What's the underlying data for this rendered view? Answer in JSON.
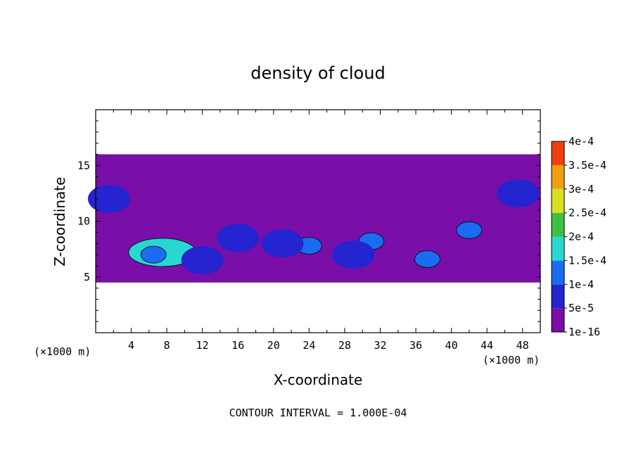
{
  "chart_data": {
    "type": "heatmap",
    "title": "density of cloud",
    "xlabel": "X-coordinate",
    "ylabel": "Z-coordinate",
    "x_unit": "(×1000 m)",
    "y_unit": "(×1000 m)",
    "xlim": [
      0,
      50
    ],
    "ylim": [
      0,
      20
    ],
    "x_ticks": [
      4,
      8,
      12,
      16,
      20,
      24,
      28,
      32,
      36,
      40,
      44,
      48
    ],
    "x_tick_labels": [
      "4",
      "8",
      "12",
      "16",
      "20",
      "24",
      "28",
      "32",
      "36",
      "40",
      "44",
      "48"
    ],
    "y_ticks": [
      5,
      10,
      15
    ],
    "y_tick_labels": [
      "5",
      "10",
      "15"
    ],
    "colorbar": {
      "levels": [
        "1e-16",
        "5e-5",
        "1e-4",
        "1.5e-4",
        "2e-4",
        "2.5e-4",
        "3e-4",
        "3.5e-4",
        "4e-4"
      ],
      "colors": [
        "#7a0ea8",
        "#2424d0",
        "#1a6cf0",
        "#28d8d0",
        "#40c040",
        "#d8e020",
        "#f0a010",
        "#f04010",
        "#f87878"
      ]
    },
    "footnote": "CONTOUR INTERVAL = 1.000E-04",
    "cloud_layer_z": [
      4.5,
      16
    ],
    "blobs": [
      {
        "x": 7.5,
        "z": 7.2,
        "value": 0.00015
      },
      {
        "x": 6.5,
        "z": 7.0,
        "value": 0.00012
      },
      {
        "x": 24,
        "z": 7.8,
        "value": 0.0001
      },
      {
        "x": 31,
        "z": 8.2,
        "value": 0.0001
      },
      {
        "x": 37.3,
        "z": 6.6,
        "value": 0.0001
      },
      {
        "x": 42,
        "z": 9.2,
        "value": 0.0001
      },
      {
        "x": 1.5,
        "z": 12,
        "value": 5e-05
      },
      {
        "x": 47.5,
        "z": 12.5,
        "value": 5e-05
      },
      {
        "x": 12,
        "z": 6.5,
        "value": 5e-05
      },
      {
        "x": 16,
        "z": 8.5,
        "value": 5e-05
      },
      {
        "x": 21,
        "z": 8,
        "value": 5e-05
      },
      {
        "x": 29,
        "z": 7,
        "value": 5e-05
      }
    ]
  }
}
